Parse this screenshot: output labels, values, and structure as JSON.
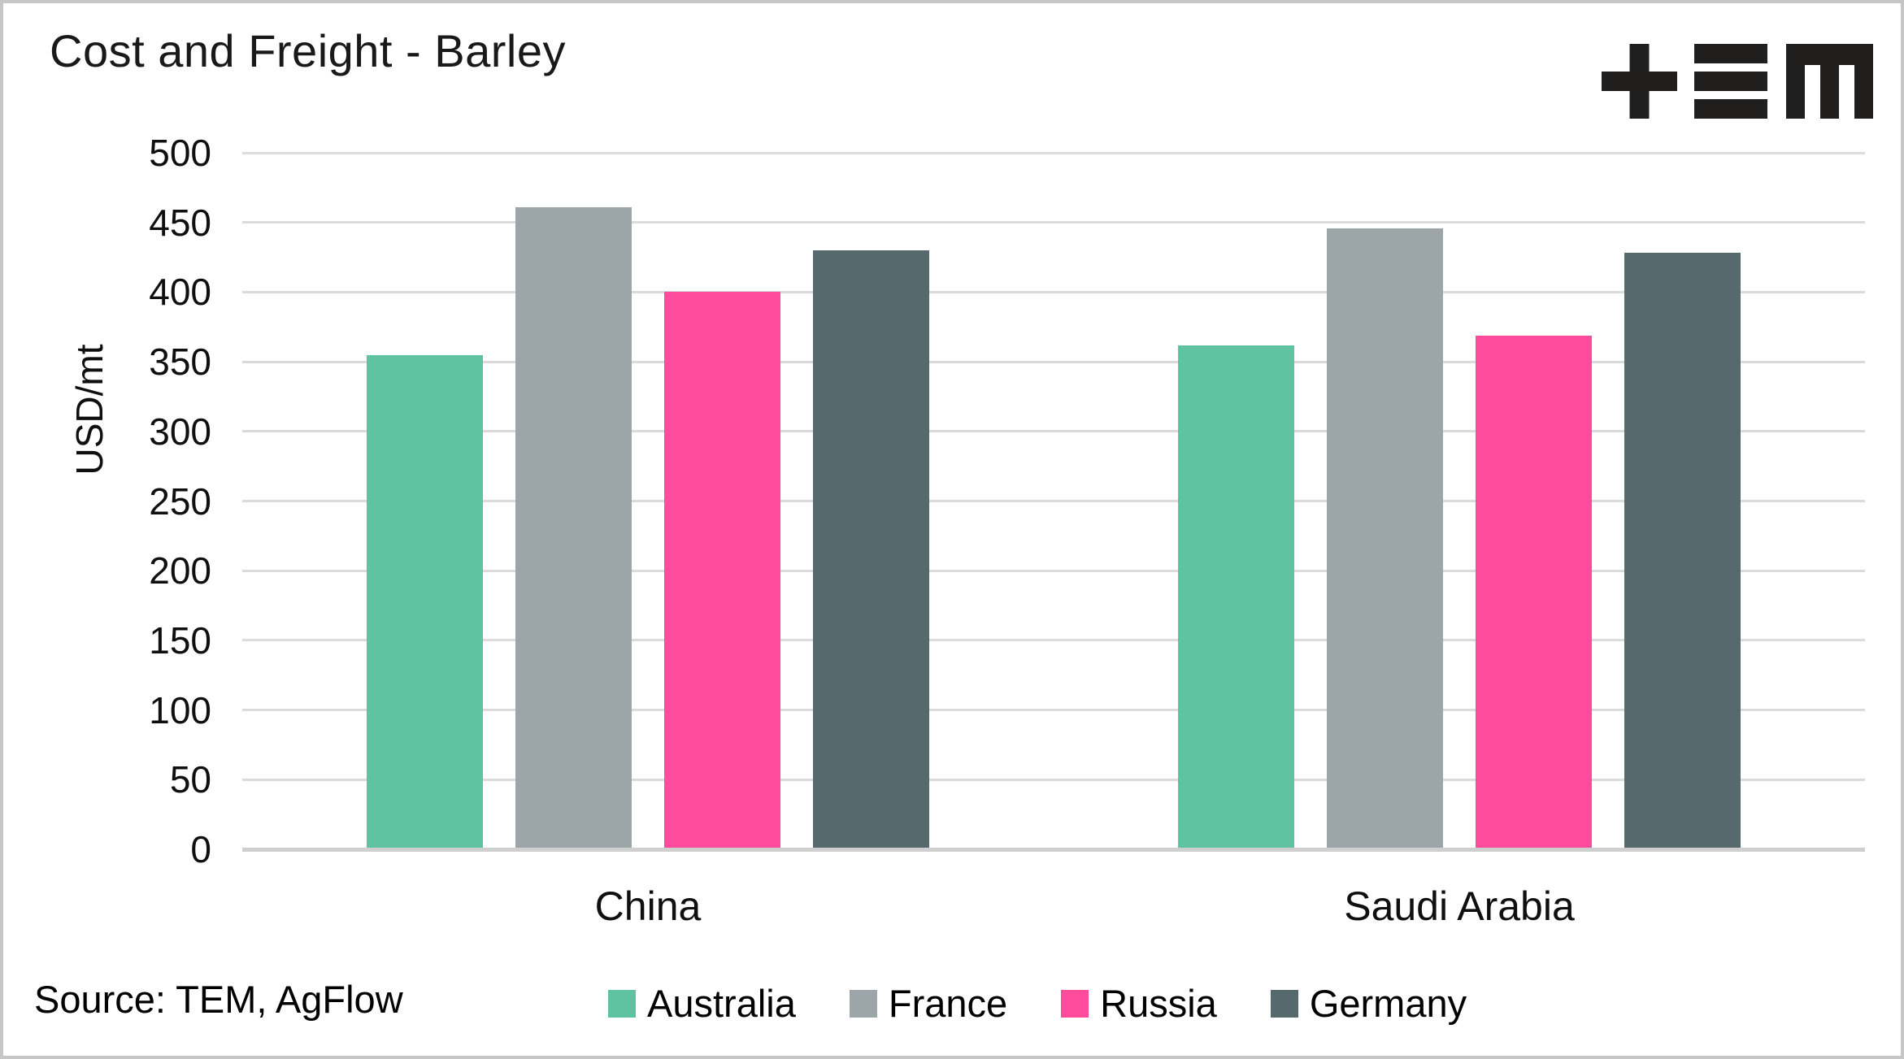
{
  "header": {
    "title": "Cost and Freight - Barley",
    "logo": "tem-logo"
  },
  "source_note": "Source: TEM, AgFlow",
  "chart_data": {
    "type": "bar",
    "title": "Cost and Freight - Barley",
    "categories": [
      "China",
      "Saudi Arabia"
    ],
    "series": [
      {
        "name": "Australia",
        "color": "#5FC3A2",
        "values": [
          355,
          362
        ]
      },
      {
        "name": "France",
        "color": "#9CA5A7",
        "values": [
          461,
          446
        ]
      },
      {
        "name": "Russia",
        "color": "#FF4B9B",
        "values": [
          400,
          369
        ]
      },
      {
        "name": "Germany",
        "color": "#566A6E",
        "values": [
          430,
          428
        ]
      }
    ],
    "ylabel": "USD/mt",
    "ylim": [
      0,
      500
    ],
    "ytick_step": 50,
    "grid": true,
    "legend_position": "bottom",
    "colors": {
      "gridline": "#dbdbdb",
      "axis_line": "#cfcfcf",
      "text": "#0f0f0f",
      "logo": "#211e1e"
    }
  }
}
